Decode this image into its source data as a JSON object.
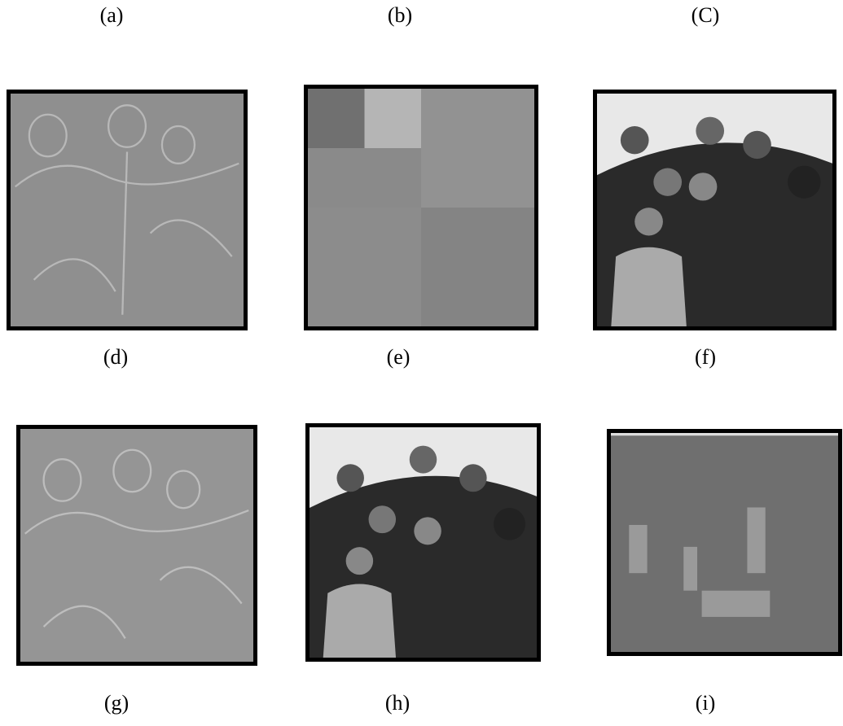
{
  "labels": [
    [
      "(a)",
      "(b)",
      "(C)"
    ],
    [
      "(d)",
      "(e)",
      "(f)"
    ],
    [
      "(g)",
      "(h)",
      "(i)"
    ]
  ]
}
